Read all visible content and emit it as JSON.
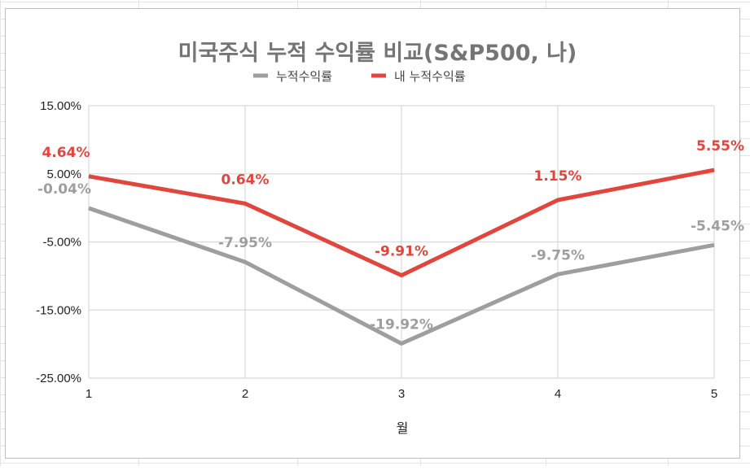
{
  "chart_data": {
    "type": "line",
    "title": "미국주식 누적 수익률 비교(S&P500, 나)",
    "xlabel": "월",
    "ylabel": "",
    "x": [
      1,
      2,
      3,
      4,
      5
    ],
    "x_tick_labels": [
      "1",
      "2",
      "3",
      "4",
      "5"
    ],
    "ylim": [
      -25,
      15
    ],
    "y_ticks": [
      15,
      5,
      -5,
      -15,
      -25
    ],
    "y_tick_labels": [
      "15.00%",
      "5.00%",
      "-5.00%",
      "-15.00%",
      "-25.00%"
    ],
    "grid": true,
    "legend_position": "top",
    "series": [
      {
        "name": "누적수익률",
        "color": "#9e9e9e",
        "values": [
          -0.04,
          -7.95,
          -19.92,
          -9.75,
          -5.45
        ],
        "labels": [
          "-0.04%",
          "-7.95%",
          "-19.92%",
          "-9.75%",
          "-5.45%"
        ]
      },
      {
        "name": "내 누적수익률",
        "color": "#e2453c",
        "values": [
          4.64,
          0.64,
          -9.91,
          1.15,
          5.55
        ],
        "labels": [
          "4.64%",
          "0.64%",
          "-9.91%",
          "1.15%",
          "5.55%"
        ]
      }
    ]
  }
}
